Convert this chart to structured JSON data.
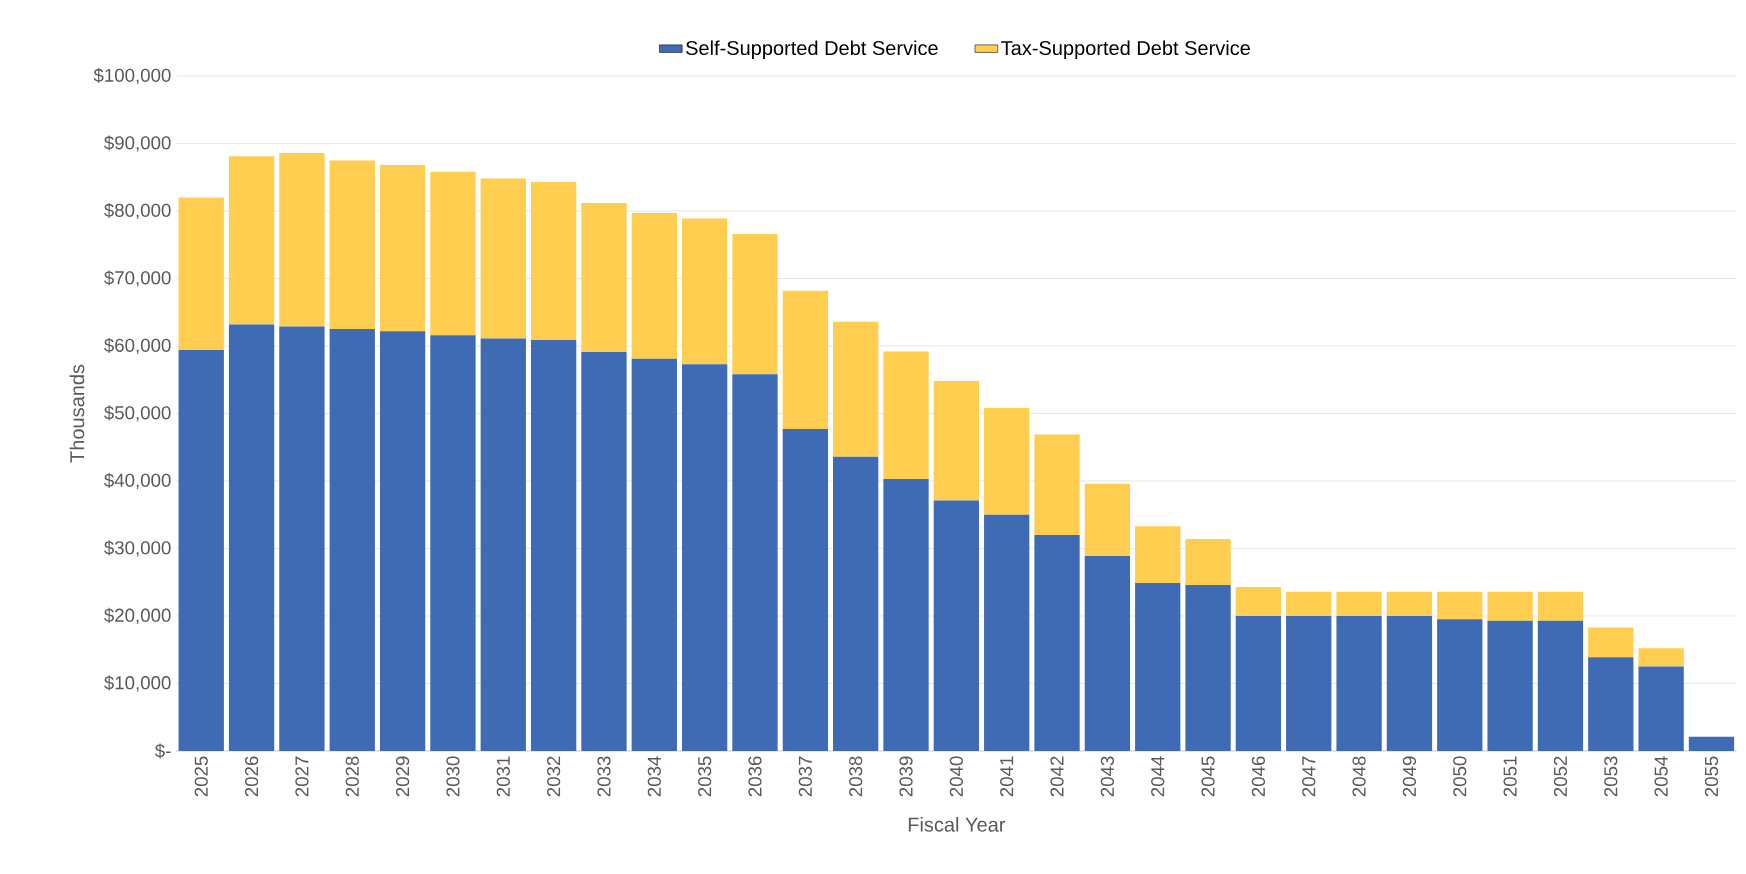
{
  "chart_data": {
    "type": "bar",
    "stacked": true,
    "xlabel": "Fiscal Year",
    "ylabel": "Thousands",
    "categories": [
      "2025",
      "2026",
      "2027",
      "2028",
      "2029",
      "2030",
      "2031",
      "2032",
      "2033",
      "2034",
      "2035",
      "2036",
      "2037",
      "2038",
      "2039",
      "2040",
      "2041",
      "2042",
      "2043",
      "2044",
      "2045",
      "2046",
      "2047",
      "2048",
      "2049",
      "2050",
      "2051",
      "2052",
      "2053",
      "2054",
      "2055"
    ],
    "series": [
      {
        "name": "Self-Supported Debt Service",
        "color": "#3e6bb3",
        "values": [
          59400,
          63200,
          62900,
          62500,
          62200,
          61600,
          61100,
          60900,
          59100,
          58100,
          57300,
          55800,
          47700,
          43600,
          40300,
          37100,
          35000,
          32000,
          28900,
          24900,
          24600,
          20000,
          20000,
          20000,
          20000,
          19500,
          19300,
          19300,
          13900,
          12500,
          2100
        ]
      },
      {
        "name": "Tax-Supported Debt Service",
        "color": "#ffcd4f",
        "values": [
          22600,
          24900,
          25700,
          25000,
          24600,
          24200,
          23700,
          23400,
          22100,
          21600,
          21600,
          20800,
          20500,
          20000,
          18900,
          17700,
          15800,
          14900,
          10700,
          8400,
          6800,
          4300,
          3600,
          3600,
          3600,
          4100,
          4300,
          4300,
          4400,
          2700,
          0
        ]
      }
    ],
    "ylim": [
      0,
      100000
    ],
    "yticks": [
      {
        "value": 0,
        "label": "$-"
      },
      {
        "value": 10000,
        "label": "$10,000"
      },
      {
        "value": 20000,
        "label": "$20,000"
      },
      {
        "value": 30000,
        "label": "$30,000"
      },
      {
        "value": 40000,
        "label": "$40,000"
      },
      {
        "value": 50000,
        "label": "$50,000"
      },
      {
        "value": 60000,
        "label": "$60,000"
      },
      {
        "value": 70000,
        "label": "$70,000"
      },
      {
        "value": 80000,
        "label": "$80,000"
      },
      {
        "value": 90000,
        "label": "$90,000"
      },
      {
        "value": 100000,
        "label": "$100,000"
      }
    ],
    "grid": "y",
    "legend": "top"
  }
}
